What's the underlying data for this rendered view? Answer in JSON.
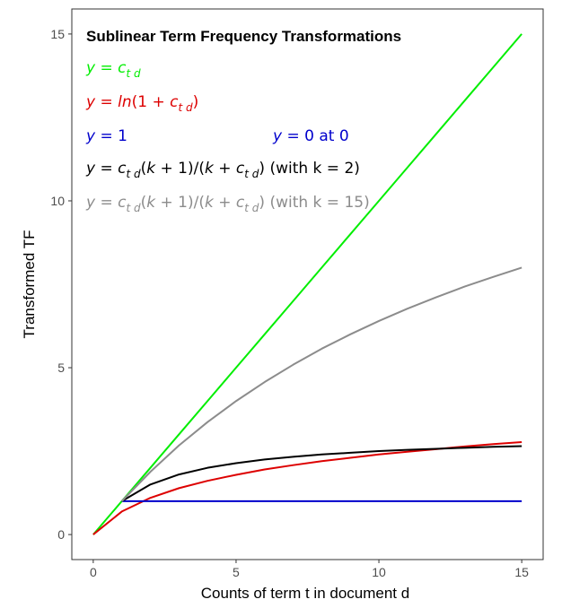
{
  "chart_data": {
    "type": "line",
    "title": "Sublinear Term Frequency Transformations",
    "xlabel": "Counts of term t in document d",
    "ylabel": "Transformed TF",
    "xlim": [
      -0.75,
      15.75
    ],
    "ylim": [
      -0.75,
      15.75
    ],
    "x_ticks": [
      0,
      5,
      10,
      15
    ],
    "y_ticks": [
      0,
      5,
      10,
      15
    ],
    "grid": false,
    "x": [
      0,
      1,
      2,
      3,
      4,
      5,
      6,
      7,
      8,
      9,
      10,
      11,
      12,
      13,
      14,
      15
    ],
    "series": [
      {
        "color": "#00ee00",
        "values": [
          0,
          1,
          2,
          3,
          4,
          5,
          6,
          7,
          8,
          9,
          10,
          11,
          12,
          13,
          14,
          15
        ]
      },
      {
        "color": "#dd0000",
        "values": [
          0,
          0.69,
          1.1,
          1.39,
          1.61,
          1.79,
          1.95,
          2.08,
          2.2,
          2.3,
          2.4,
          2.48,
          2.56,
          2.64,
          2.71,
          2.77
        ]
      },
      {
        "color": "#0000cc",
        "x": [
          1,
          15
        ],
        "values": [
          1,
          1
        ]
      },
      {
        "color": "#000000",
        "x": [
          1,
          2,
          3,
          4,
          5,
          6,
          7,
          8,
          9,
          10,
          11,
          12,
          13,
          14,
          15
        ],
        "values": [
          1,
          1.5,
          1.8,
          2.0,
          2.14,
          2.25,
          2.33,
          2.4,
          2.45,
          2.5,
          2.54,
          2.57,
          2.6,
          2.63,
          2.65
        ]
      },
      {
        "color": "#8c8c8c",
        "x": [
          1,
          2,
          3,
          4,
          5,
          6,
          7,
          8,
          9,
          10,
          11,
          12,
          13,
          14,
          15
        ],
        "values": [
          1,
          1.88,
          2.67,
          3.37,
          4.0,
          4.57,
          5.09,
          5.57,
          6.0,
          6.4,
          6.77,
          7.11,
          7.43,
          7.72,
          8.0
        ]
      }
    ],
    "annotations": [
      {
        "color": "#00ee00",
        "parts": [
          [
            "y",
            "i"
          ],
          [
            " = ",
            "n"
          ],
          [
            "c",
            "i"
          ],
          [
            "t d",
            "s"
          ]
        ]
      },
      {
        "color": "#dd0000",
        "parts": [
          [
            "y",
            "i"
          ],
          [
            " = ",
            "n"
          ],
          [
            "ln",
            "i"
          ],
          [
            "(1 + ",
            "n"
          ],
          [
            "c",
            "i"
          ],
          [
            "t d",
            "s"
          ],
          [
            ")",
            "n"
          ]
        ]
      },
      {
        "color": "#0000cc",
        "parts": [
          [
            "y",
            "i"
          ],
          [
            " = 1",
            "n"
          ]
        ]
      },
      {
        "color": "#0000cc",
        "parts": [
          [
            "y",
            "i"
          ],
          [
            " = 0 at 0",
            "n"
          ]
        ]
      },
      {
        "color": "#000000",
        "parts": [
          [
            "y",
            "i"
          ],
          [
            " = ",
            "n"
          ],
          [
            "c",
            "i"
          ],
          [
            "t d",
            "s"
          ],
          [
            "(",
            "n"
          ],
          [
            "k",
            "i"
          ],
          [
            " + 1)/(",
            "n"
          ],
          [
            "k",
            "i"
          ],
          [
            " + ",
            "n"
          ],
          [
            "c",
            "i"
          ],
          [
            "t d",
            "s"
          ],
          [
            ")   (with k = 2)",
            "n"
          ]
        ]
      },
      {
        "color": "#8c8c8c",
        "parts": [
          [
            "y",
            "i"
          ],
          [
            " = ",
            "n"
          ],
          [
            "c",
            "i"
          ],
          [
            "t d",
            "s"
          ],
          [
            "(",
            "n"
          ],
          [
            "k",
            "i"
          ],
          [
            " + 1)/(",
            "n"
          ],
          [
            "k",
            "i"
          ],
          [
            " + ",
            "n"
          ],
          [
            "c",
            "i"
          ],
          [
            "t d",
            "s"
          ],
          [
            ")   (with k = 15)",
            "n"
          ]
        ]
      }
    ]
  }
}
